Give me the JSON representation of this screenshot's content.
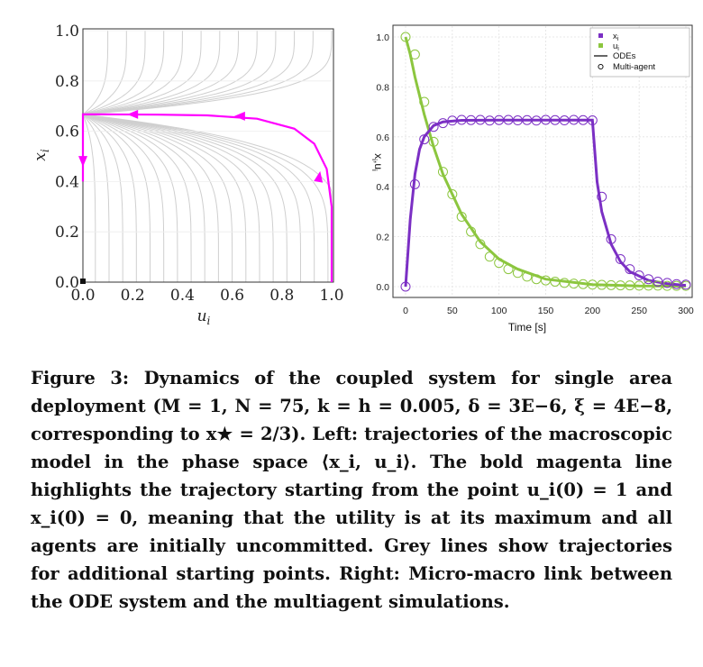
{
  "figure": {
    "left_plot": {
      "x_axis_label": "u",
      "x_axis_label_sub": "i",
      "y_axis_label": "x",
      "y_axis_label_sub": "i",
      "x_ticks": [
        "0.0",
        "0.2",
        "0.4",
        "0.6",
        "0.8",
        "1.0"
      ],
      "y_ticks": [
        "0.0",
        "0.2",
        "0.4",
        "0.6",
        "0.8",
        "1.0"
      ],
      "highlight_color": "#ff00ff",
      "grey_color": "#cfcfcf"
    },
    "right_plot": {
      "x_axis_title": "Time [s]",
      "y_axis_title": "x",
      "y_axis_title_sub": "i",
      "y_axis_title_2": ",u",
      "y_axis_title_2_sub": "i",
      "x_ticks": [
        "0",
        "50",
        "100",
        "150",
        "200",
        "250",
        "300"
      ],
      "y_ticks": [
        "0.0",
        "0.2",
        "0.4",
        "0.6",
        "0.8",
        "1.0"
      ],
      "legend": [
        {
          "label": "x",
          "sub": "i",
          "marker": "square",
          "color": "#7b2fc4"
        },
        {
          "label": "u",
          "sub": "i",
          "marker": "square",
          "color": "#8cc63f"
        },
        {
          "label": "ODEs",
          "marker": "line",
          "color": "#000000"
        },
        {
          "label": "Multi-agent",
          "marker": "circle",
          "color": "#000000"
        }
      ],
      "x_color": "#7b2fc4",
      "u_color": "#8cc63f"
    }
  },
  "chart_data": [
    {
      "type": "line",
      "xlabel": "u_i",
      "ylabel": "x_i",
      "xlim": [
        0,
        1
      ],
      "ylim": [
        0,
        1
      ],
      "grid": true,
      "series": [
        {
          "points": [
            [
              1.0,
              0.0
            ],
            [
              1.0,
              0.3
            ],
            [
              0.98,
              0.45
            ],
            [
              0.93,
              0.55
            ],
            [
              0.85,
              0.61
            ],
            [
              0.7,
              0.65
            ],
            [
              0.5,
              0.663
            ],
            [
              0.3,
              0.666
            ],
            [
              0.1,
              0.667
            ],
            [
              0.0,
              0.667
            ],
            [
              0.0,
              0.4
            ]
          ]
        }
      ]
    },
    {
      "type": "line",
      "xlabel": "Time [s]",
      "ylabel": "x_i,u_i",
      "xlim": [
        0,
        300
      ],
      "ylim": [
        0,
        1
      ],
      "grid": true,
      "legend_position": "top-right",
      "series": [
        {
          "name": "x_i",
          "x": [
            0,
            5,
            10,
            15,
            20,
            30,
            40,
            60,
            100,
            150,
            195,
            200,
            205,
            210,
            220,
            230,
            240,
            260,
            280,
            300
          ],
          "values": [
            0.0,
            0.27,
            0.45,
            0.55,
            0.6,
            0.645,
            0.66,
            0.666,
            0.667,
            0.667,
            0.667,
            0.667,
            0.42,
            0.3,
            0.17,
            0.1,
            0.06,
            0.025,
            0.012,
            0.005
          ]
        },
        {
          "name": "u_i",
          "x": [
            0,
            5,
            10,
            20,
            30,
            40,
            60,
            80,
            100,
            120,
            150,
            200,
            250,
            300
          ],
          "values": [
            1.0,
            0.93,
            0.84,
            0.69,
            0.56,
            0.45,
            0.29,
            0.18,
            0.11,
            0.07,
            0.03,
            0.008,
            0.003,
            0.002
          ]
        }
      ],
      "multi_agent_x": [
        [
          0,
          0.0
        ],
        [
          10,
          0.41
        ],
        [
          20,
          0.59
        ],
        [
          30,
          0.64
        ],
        [
          40,
          0.655
        ],
        [
          50,
          0.665
        ],
        [
          60,
          0.668
        ],
        [
          70,
          0.667
        ],
        [
          80,
          0.668
        ],
        [
          90,
          0.665
        ],
        [
          100,
          0.667
        ],
        [
          110,
          0.668
        ],
        [
          120,
          0.666
        ],
        [
          130,
          0.667
        ],
        [
          140,
          0.665
        ],
        [
          150,
          0.668
        ],
        [
          160,
          0.667
        ],
        [
          170,
          0.666
        ],
        [
          180,
          0.668
        ],
        [
          190,
          0.667
        ],
        [
          200,
          0.666
        ],
        [
          210,
          0.36
        ],
        [
          220,
          0.19
        ],
        [
          230,
          0.11
        ],
        [
          240,
          0.07
        ],
        [
          250,
          0.045
        ],
        [
          260,
          0.03
        ],
        [
          270,
          0.02
        ],
        [
          280,
          0.015
        ],
        [
          290,
          0.01
        ],
        [
          300,
          0.008
        ]
      ],
      "multi_agent_u": [
        [
          0,
          1.0
        ],
        [
          10,
          0.93
        ],
        [
          20,
          0.74
        ],
        [
          30,
          0.58
        ],
        [
          40,
          0.46
        ],
        [
          50,
          0.37
        ],
        [
          60,
          0.28
        ],
        [
          70,
          0.22
        ],
        [
          80,
          0.17
        ],
        [
          90,
          0.12
        ],
        [
          100,
          0.095
        ],
        [
          110,
          0.07
        ],
        [
          120,
          0.055
        ],
        [
          130,
          0.04
        ],
        [
          140,
          0.03
        ],
        [
          150,
          0.025
        ],
        [
          160,
          0.02
        ],
        [
          170,
          0.015
        ],
        [
          180,
          0.012
        ],
        [
          190,
          0.01
        ],
        [
          200,
          0.008
        ],
        [
          210,
          0.007
        ],
        [
          220,
          0.006
        ],
        [
          230,
          0.005
        ],
        [
          240,
          0.005
        ],
        [
          250,
          0.004
        ],
        [
          260,
          0.004
        ],
        [
          270,
          0.004
        ],
        [
          280,
          0.003
        ],
        [
          290,
          0.003
        ],
        [
          300,
          0.003
        ]
      ]
    }
  ],
  "caption": {
    "label": "Figure 3:",
    "body": "Dynamics of the coupled system for single area deployment (M = 1, N = 75, k = h = 0.005, δ = 3E−6, ξ = 4E−8, corresponding to x★ = 2/3). Left: trajectories of the macroscopic model in the phase space ⟨x_i, u_i⟩. The bold magenta line highlights the trajectory starting from the point u_i(0) = 1 and x_i(0) = 0, meaning that the utility is at its maximum and all agents are initially uncommitted. Grey lines show trajectories for additional starting points. Right: Micro-macro link between the ODE system and the multiagent simulations."
  }
}
